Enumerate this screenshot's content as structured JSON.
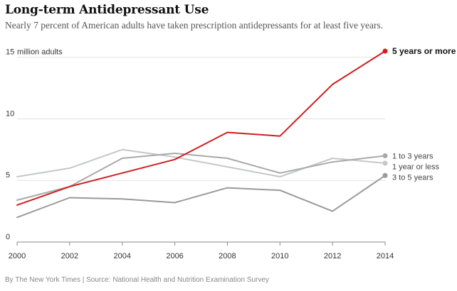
{
  "title": "Long-term Antidepressant Use",
  "subtitle": "Nearly 7 percent of American adults have taken prescription antidepressants for at least five years.",
  "footer": "By The New York Times | Source: National Health and Nutrition Examination Survey",
  "colors": {
    "highlight": "#d11e1e",
    "grid": "#e2e2e2",
    "axis_text": "#333333"
  },
  "chart_data": {
    "type": "line",
    "title": "Long-term Antidepressant Use",
    "subtitle": "Nearly 7 percent of American adults have taken prescription antidepressants for at least five years.",
    "xlabel": "",
    "ylabel": "",
    "unit_label": "million adults",
    "x": [
      2000,
      2002,
      2004,
      2006,
      2008,
      2010,
      2012,
      2014
    ],
    "xlim": [
      2000,
      2014
    ],
    "ylim": [
      0,
      15.5
    ],
    "y_ticks": [
      0,
      5,
      10,
      15
    ],
    "x_ticks": [
      2000,
      2002,
      2004,
      2006,
      2008,
      2010,
      2012,
      2014
    ],
    "grid": "horizontal",
    "legend": "direct labels at right end of lines",
    "series": [
      {
        "name": "1 year or less",
        "color": "#c4c8c8",
        "width": 2,
        "end_marker": true,
        "label_bold": false,
        "values": [
          5.3,
          6.0,
          7.5,
          6.9,
          6.1,
          5.3,
          6.8,
          6.4
        ]
      },
      {
        "name": "1 to 3 years",
        "color": "#a9a9a9",
        "width": 2,
        "end_marker": true,
        "label_bold": false,
        "values": [
          3.4,
          4.5,
          6.8,
          7.2,
          6.8,
          5.6,
          6.5,
          7.0
        ]
      },
      {
        "name": "3 to 5 years",
        "color": "#9a9a9a",
        "width": 2,
        "end_marker": true,
        "label_bold": false,
        "values": [
          2.0,
          3.6,
          3.5,
          3.2,
          4.4,
          4.2,
          2.5,
          5.4
        ]
      },
      {
        "name": "5 years or more",
        "color": "#d11e1e",
        "width": 2,
        "end_marker": true,
        "label_bold": true,
        "values": [
          3.0,
          4.5,
          5.6,
          6.7,
          8.9,
          8.6,
          12.8,
          15.5
        ]
      }
    ]
  }
}
